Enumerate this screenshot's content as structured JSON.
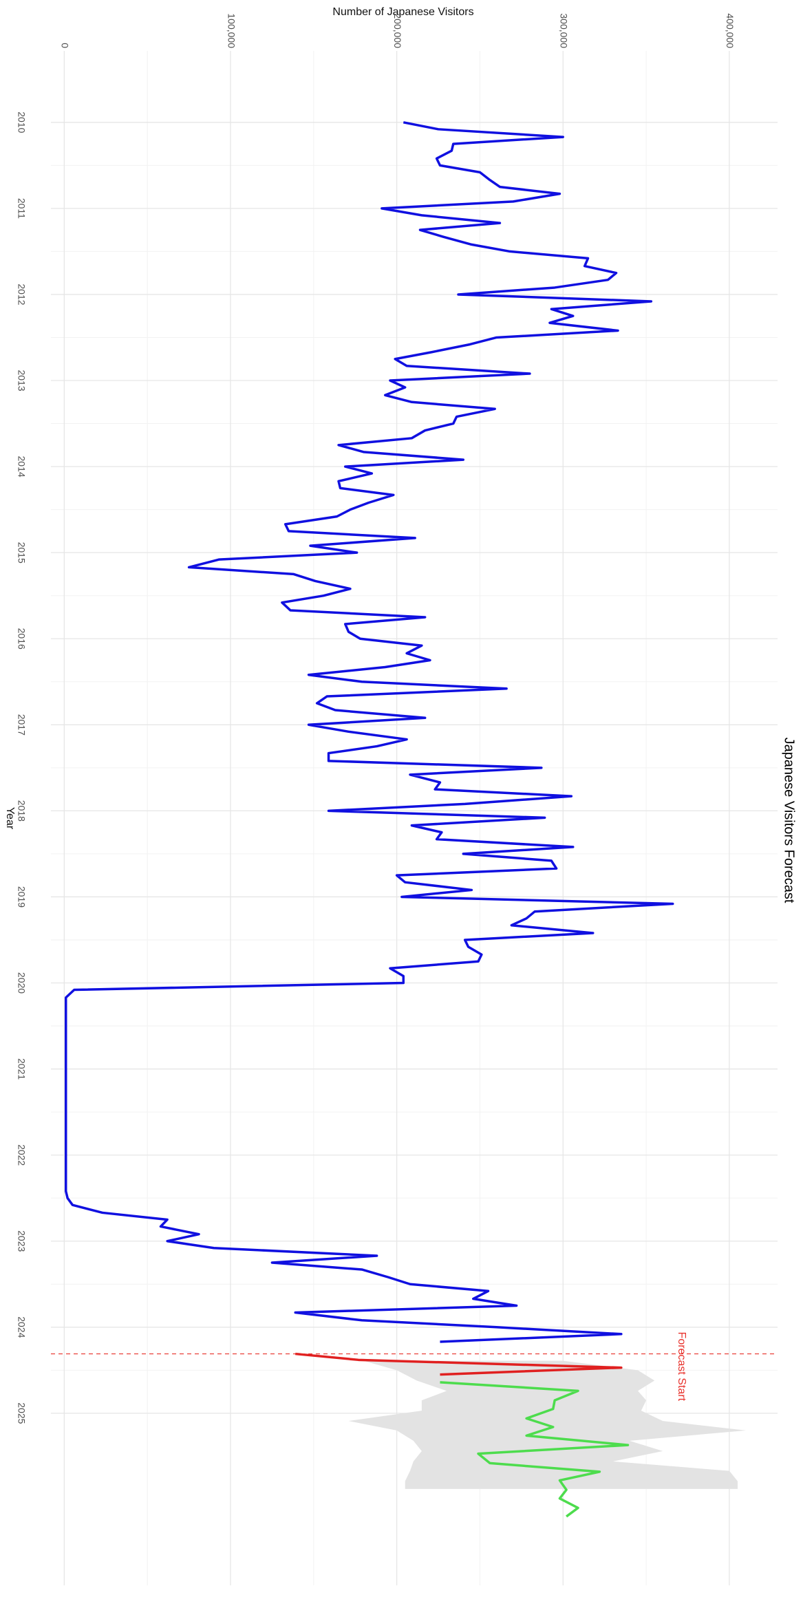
{
  "chart_data": {
    "type": "line",
    "title": "Japanese Visitors Forecast",
    "x_label": "Year",
    "y_label": "Number of Japanese Visitors",
    "orientation": "rotated",
    "grid": true,
    "xlim": [
      2009.17,
      2027.0
    ],
    "xticks": [
      2010,
      2011,
      2012,
      2013,
      2014,
      2015,
      2016,
      2017,
      2018,
      2019,
      2020,
      2021,
      2022,
      2023,
      2024,
      2025
    ],
    "ylim": [
      -8000,
      429000
    ],
    "yticks": [
      0,
      {
        "value": 100000,
        "label": "100,000"
      },
      {
        "value": 200000,
        "label": "200,000"
      },
      {
        "value": 300000,
        "label": "300,000"
      },
      {
        "value": 400000,
        "label": "400,000"
      }
    ],
    "annotation": {
      "text": "Forecast Start",
      "x": 2024.31,
      "color": "#e8302a"
    },
    "band": {
      "color": "#e3e3e3",
      "x": [
        2024.39,
        2024.5,
        2024.62,
        2024.74,
        2024.85,
        2024.97,
        2025.09,
        2025.2,
        2025.32,
        2025.44,
        2025.56,
        2025.67,
        2025.79,
        2025.88
      ],
      "lower": [
        180000,
        200000,
        212000,
        230000,
        215000,
        215000,
        171000,
        200000,
        210000,
        215000,
        210000,
        208000,
        205000,
        205000
      ],
      "upper": [
        300000,
        345000,
        355000,
        345000,
        350000,
        347000,
        360000,
        410000,
        340000,
        360000,
        330000,
        400000,
        405000,
        405000
      ]
    },
    "series": [
      {
        "color": "#1010e0",
        "x": [
          2010.0,
          2010.08,
          2010.17,
          2010.25,
          2010.33,
          2010.42,
          2010.5,
          2010.58,
          2010.67,
          2010.75,
          2010.83,
          2010.92,
          2011.0,
          2011.08,
          2011.17,
          2011.25,
          2011.33,
          2011.42,
          2011.5,
          2011.58,
          2011.67,
          2011.75,
          2011.83,
          2011.92,
          2012.0,
          2012.08,
          2012.17,
          2012.25,
          2012.33,
          2012.42,
          2012.5,
          2012.58,
          2012.67,
          2012.75,
          2012.83,
          2012.92,
          2013.0,
          2013.08,
          2013.17,
          2013.25,
          2013.33,
          2013.42,
          2013.5,
          2013.58,
          2013.67,
          2013.75,
          2013.83,
          2013.92,
          2014.0,
          2014.08,
          2014.17,
          2014.25,
          2014.33,
          2014.42,
          2014.5,
          2014.58,
          2014.67,
          2014.75,
          2014.83,
          2014.92,
          2015.0,
          2015.08,
          2015.17,
          2015.25,
          2015.33,
          2015.42,
          2015.5,
          2015.58,
          2015.67,
          2015.75,
          2015.83,
          2015.92,
          2016.0,
          2016.08,
          2016.17,
          2016.25,
          2016.33,
          2016.42,
          2016.5,
          2016.58,
          2016.67,
          2016.75,
          2016.83,
          2016.92,
          2017.0,
          2017.08,
          2017.17,
          2017.25,
          2017.33,
          2017.42,
          2017.5,
          2017.58,
          2017.67,
          2017.75,
          2017.83,
          2017.92,
          2018.0,
          2018.08,
          2018.17,
          2018.25,
          2018.33,
          2018.42,
          2018.5,
          2018.58,
          2018.67,
          2018.75,
          2018.83,
          2018.92,
          2019.0,
          2019.08,
          2019.17,
          2019.25,
          2019.33,
          2019.42,
          2019.5,
          2019.58,
          2019.67,
          2019.75,
          2019.83,
          2019.92,
          2020.0,
          2020.08,
          2020.17,
          2020.25,
          2020.33,
          2020.42,
          2020.5,
          2020.58,
          2020.67,
          2020.75,
          2020.83,
          2020.92,
          2021.0,
          2021.08,
          2021.17,
          2021.25,
          2021.33,
          2021.42,
          2021.5,
          2021.58,
          2021.67,
          2021.75,
          2021.83,
          2021.92,
          2022.0,
          2022.08,
          2022.17,
          2022.25,
          2022.33,
          2022.42,
          2022.5,
          2022.58,
          2022.67,
          2022.75,
          2022.83,
          2022.92,
          2023.0,
          2023.08,
          2023.17,
          2023.25,
          2023.33,
          2023.42,
          2023.5,
          2023.58,
          2023.67,
          2023.75,
          2023.83,
          2023.92,
          2024.0,
          2024.08,
          2024.17
        ],
        "values": [
          204000,
          225000,
          300000,
          234000,
          233000,
          224000,
          226000,
          250000,
          256000,
          262000,
          298000,
          270000,
          191000,
          215000,
          262000,
          214000,
          228000,
          245000,
          268000,
          315000,
          313000,
          332000,
          327000,
          295000,
          237000,
          353000,
          293000,
          306000,
          292000,
          333000,
          260000,
          244000,
          221000,
          199000,
          206000,
          280000,
          196000,
          205000,
          193000,
          209000,
          259000,
          236000,
          234000,
          217000,
          209000,
          165000,
          180000,
          240000,
          169000,
          185000,
          165000,
          166000,
          198000,
          183000,
          172000,
          164000,
          133000,
          135000,
          211000,
          148000,
          176000,
          93000,
          75000,
          138000,
          151000,
          172000,
          156000,
          131000,
          136000,
          217000,
          169000,
          171000,
          178000,
          215000,
          206000,
          220000,
          193000,
          147000,
          179000,
          266000,
          158000,
          152000,
          163000,
          217000,
          147000,
          171000,
          206000,
          188000,
          159000,
          159000,
          287000,
          208000,
          226000,
          223000,
          305000,
          241000,
          159000,
          289000,
          209000,
          227000,
          224000,
          306000,
          240000,
          293000,
          296000,
          200000,
          205000,
          245000,
          203000,
          366000,
          283000,
          278000,
          269000,
          318000,
          241000,
          243000,
          251000,
          249000,
          196000,
          204000,
          204000,
          6000,
          1000,
          1000,
          1000,
          1000,
          1000,
          1000,
          1000,
          1000,
          1000,
          1000,
          1000,
          1000,
          1000,
          1000,
          1000,
          1000,
          1000,
          1000,
          1000,
          1000,
          1000,
          1000,
          1000,
          1000,
          1000,
          1000,
          1000,
          1000,
          2000,
          5000,
          23000,
          62000,
          58000,
          81000,
          62000,
          90000,
          188000,
          125000,
          179000,
          195000,
          208000,
          255000,
          246000,
          272000,
          139000,
          179000,
          260000,
          335000,
          226000
        ]
      },
      {
        "color": "#e02020",
        "x": [
          2024.31,
          2024.38,
          2024.47,
          2024.55
        ],
        "values": [
          139000,
          177000,
          335000,
          226000
        ]
      },
      {
        "color": "#4ddc4d",
        "x": [
          2024.64,
          2024.74,
          2024.85,
          2024.95,
          2025.06,
          2025.16,
          2025.26,
          2025.37,
          2025.47,
          2025.58,
          2025.68,
          2025.78,
          2025.89,
          2025.99,
          2026.1,
          2026.2
        ],
        "values": [
          226000,
          309000,
          295000,
          294000,
          278000,
          294000,
          278000,
          339000,
          249000,
          256000,
          322000,
          298000,
          302000,
          298000,
          309000,
          302000
        ]
      }
    ]
  }
}
